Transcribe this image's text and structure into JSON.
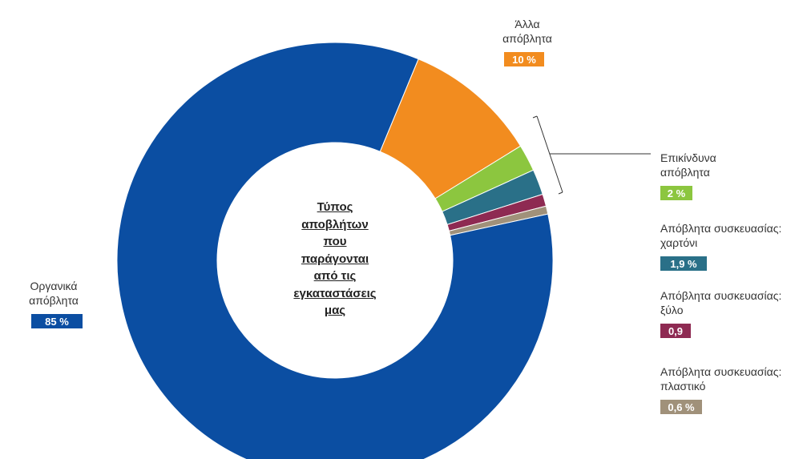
{
  "chart_data": {
    "type": "pie",
    "variant": "donut",
    "title": "Τύπος αποβλήτων που παράγονται από τις εγκαταστάσεις μας",
    "title_lines": [
      "Τύπος",
      "αποβλήτων",
      "που",
      "παράγονται",
      "από τις",
      "εγκαταστάσεις",
      "μας"
    ],
    "slices": [
      {
        "key": "other",
        "label_lines": [
          "Άλλα",
          "απόβλητα"
        ],
        "value": 10,
        "value_label": "10 %",
        "color": "#f28c1f"
      },
      {
        "key": "hazardous",
        "label_lines": [
          "Επικίνδυνα",
          "απόβλητα"
        ],
        "value": 2,
        "value_label": "2 %",
        "color": "#8cc63f"
      },
      {
        "key": "paper",
        "label_lines": [
          "Απόβλητα συσκευασίας:",
          "χαρτόνι"
        ],
        "value": 1.9,
        "value_label": "1,9 %",
        "color": "#2a7088"
      },
      {
        "key": "wood",
        "label_lines": [
          "Απόβλητα συσκευασίας:",
          "ξύλο"
        ],
        "value": 0.9,
        "value_label": "0,9",
        "color": "#8e2a52"
      },
      {
        "key": "plastic",
        "label_lines": [
          "Απόβλητα συσκευασίας:",
          "πλαστικό"
        ],
        "value": 0.6,
        "value_label": "0,6 %",
        "color": "#a0917a"
      },
      {
        "key": "organic",
        "label_lines": [
          "Οργανικά",
          "απόβλητα"
        ],
        "value": 85,
        "value_label": "85 %",
        "color": "#0b4ea2"
      }
    ]
  }
}
